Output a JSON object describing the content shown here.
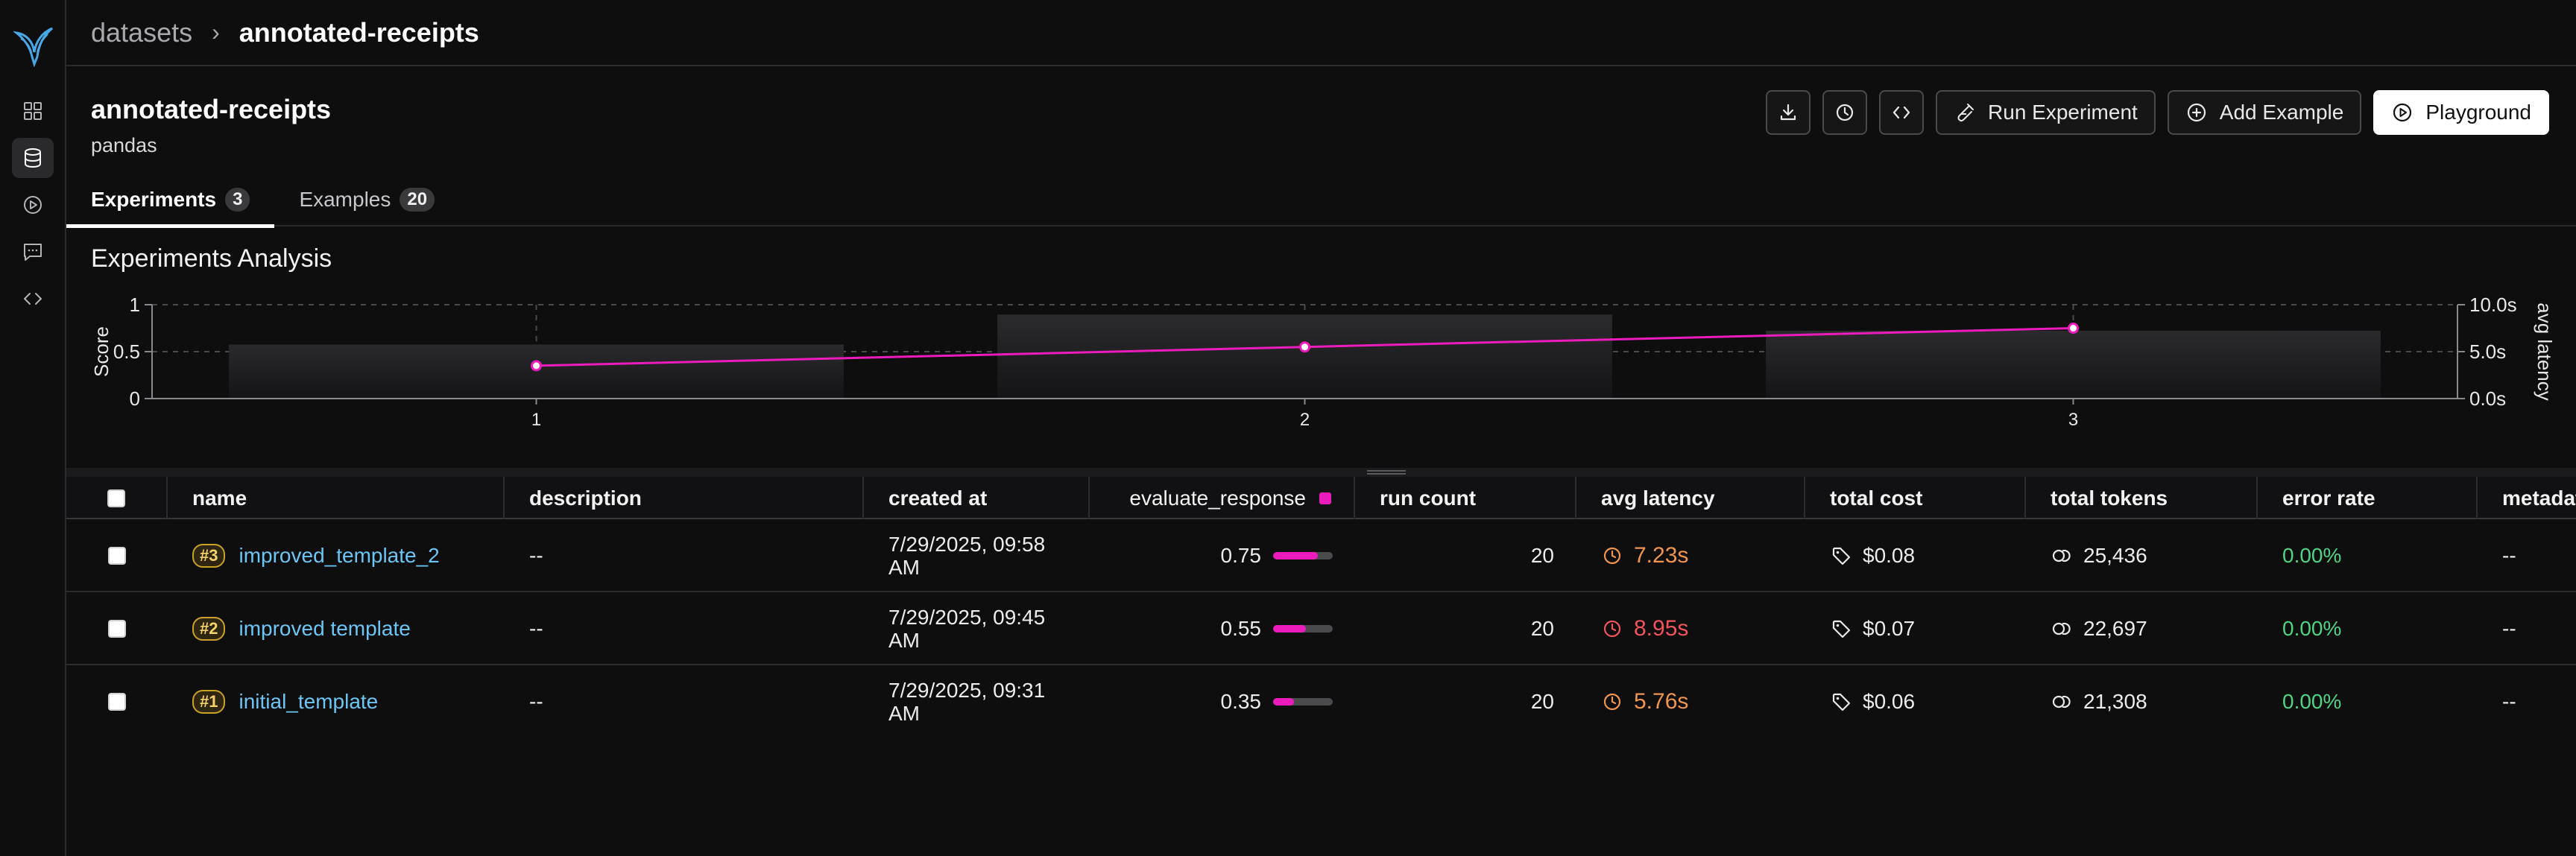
{
  "breadcrumb": {
    "root": "datasets",
    "separator": "›",
    "current": "annotated-receipts"
  },
  "dataset": {
    "title": "annotated-receipts",
    "subtitle": "pandas"
  },
  "toolbar": {
    "download_icon": "download-icon",
    "history_icon": "clock-icon",
    "code_icon": "code-icon",
    "run_experiment": "Run Experiment",
    "add_example": "Add Example",
    "playground": "Playground"
  },
  "rail": {
    "items": [
      "grid-icon",
      "database-icon",
      "play-circle-icon",
      "chat-icon",
      "code-icon"
    ],
    "active_index": 1
  },
  "tabs": [
    {
      "label": "Experiments",
      "count": "3"
    },
    {
      "label": "Examples",
      "count": "20"
    }
  ],
  "analysis": {
    "title": "Experiments Analysis"
  },
  "colors": {
    "accent": "#ec1cbc",
    "link": "#6cc6f5",
    "success": "#4ed483",
    "latency_warn": "#f0944e",
    "latency_bad": "#f2545b"
  },
  "chart_data": {
    "type": "bar",
    "categories": [
      "1",
      "2",
      "3"
    ],
    "bar_values_seconds": [
      5.76,
      8.95,
      7.23
    ],
    "line_values_score": [
      0.35,
      0.55,
      0.75
    ],
    "ylabel": "Score",
    "y2label": "avg latency",
    "ylim": [
      0,
      1
    ],
    "y2lim": [
      0,
      10
    ],
    "y_ticks": [
      "0",
      "0.5",
      "1"
    ],
    "y2_ticks": [
      "0.0s",
      "5.0s",
      "10.0s"
    ],
    "grid": true
  },
  "table": {
    "headers": {
      "name": "name",
      "description": "description",
      "created_at": "created at",
      "evaluator": "evaluate_response",
      "run_count": "run count",
      "avg_latency": "avg latency",
      "total_cost": "total cost",
      "total_tokens": "total tokens",
      "error_rate": "error rate",
      "metadata": "metadat"
    },
    "rows": [
      {
        "seq": "#3",
        "name": "improved_template_2",
        "description": "--",
        "created_line1": "7/29/2025, 09:58",
        "created_line2": "AM",
        "score": "0.75",
        "score_value": 0.75,
        "run_count": "20",
        "latency": "7.23s",
        "latency_level": "warn",
        "cost": "$0.08",
        "tokens": "25,436",
        "error_rate": "0.00%",
        "metadata": "--"
      },
      {
        "seq": "#2",
        "name": "improved template",
        "description": "--",
        "created_line1": "7/29/2025, 09:45",
        "created_line2": "AM",
        "score": "0.55",
        "score_value": 0.55,
        "run_count": "20",
        "latency": "8.95s",
        "latency_level": "bad",
        "cost": "$0.07",
        "tokens": "22,697",
        "error_rate": "0.00%",
        "metadata": "--"
      },
      {
        "seq": "#1",
        "name": "initial_template",
        "description": "--",
        "created_line1": "7/29/2025, 09:31",
        "created_line2": "AM",
        "score": "0.35",
        "score_value": 0.35,
        "run_count": "20",
        "latency": "5.76s",
        "latency_level": "warn",
        "cost": "$0.06",
        "tokens": "21,308",
        "error_rate": "0.00%",
        "metadata": "--"
      }
    ]
  }
}
